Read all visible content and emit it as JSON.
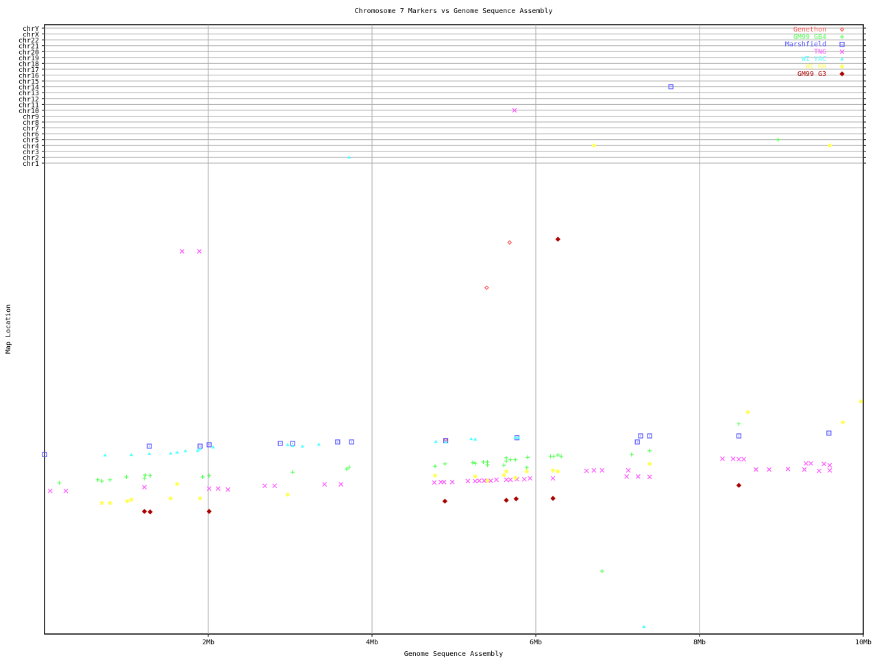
{
  "chart_data": {
    "type": "scatter",
    "title": "Chromosome 7 Markers vs Genome Sequence Assembly",
    "xlabel": "Genome Sequence Assembly",
    "ylabel": "Map Location",
    "xlim": [
      0,
      10
    ],
    "x_ticks": [
      {
        "value": 2,
        "label": "2Mb"
      },
      {
        "value": 4,
        "label": "4Mb"
      },
      {
        "value": 6,
        "label": "6Mb"
      },
      {
        "value": 8,
        "label": "8Mb"
      },
      {
        "value": 10,
        "label": "10Mb"
      }
    ],
    "chromosome_rows": [
      "chr1",
      "chr2",
      "chr3",
      "chr4",
      "chr5",
      "chr6",
      "chr7",
      "chr8",
      "chr9",
      "chr10",
      "chr11",
      "chr12",
      "chr13",
      "chr14",
      "chr15",
      "chr16",
      "chr17",
      "chr18",
      "chr19",
      "chr20",
      "chr21",
      "chr22",
      "chrX",
      "chrY"
    ],
    "ylim": [
      0,
      100
    ],
    "grid": true,
    "legend_position": "top-right",
    "series": [
      {
        "name": "Genethon",
        "color": "#ff5555",
        "marker": "diamond",
        "points": [
          [
            5.68,
            84.0
          ],
          [
            5.4,
            74.3
          ],
          [
            4.9,
            41.6
          ]
        ],
        "other_chr": []
      },
      {
        "name": "GM99 GB4",
        "color": "#55ff55",
        "marker": "plus",
        "points": [
          [
            0.18,
            32.4
          ],
          [
            0.65,
            33.1
          ],
          [
            0.7,
            32.8
          ],
          [
            0.8,
            33.1
          ],
          [
            1.0,
            33.7
          ],
          [
            1.23,
            34.1
          ],
          [
            1.22,
            33.4
          ],
          [
            1.29,
            34.0
          ],
          [
            1.93,
            33.7
          ],
          [
            2.01,
            34.0
          ],
          [
            3.03,
            34.7
          ],
          [
            3.69,
            35.4
          ],
          [
            3.72,
            35.8
          ],
          [
            4.77,
            36.0
          ],
          [
            4.89,
            36.5
          ],
          [
            5.23,
            36.8
          ],
          [
            5.26,
            36.6
          ],
          [
            5.36,
            36.9
          ],
          [
            5.41,
            36.9
          ],
          [
            5.41,
            36.3
          ],
          [
            5.64,
            37.8
          ],
          [
            5.64,
            37.1
          ],
          [
            5.69,
            37.4
          ],
          [
            5.75,
            37.4
          ],
          [
            5.61,
            36.2
          ],
          [
            5.9,
            37.9
          ],
          [
            5.89,
            35.7
          ],
          [
            6.18,
            38.1
          ],
          [
            6.22,
            38.1
          ],
          [
            6.27,
            38.4
          ],
          [
            6.31,
            38.1
          ],
          [
            7.17,
            38.5
          ],
          [
            7.39,
            39.3
          ],
          [
            8.48,
            45.1
          ],
          [
            6.81,
            13.5
          ]
        ],
        "other_chr": [
          {
            "x": 8.96,
            "chr": "chr5"
          }
        ]
      },
      {
        "name": "Marshfield",
        "color": "#5555ff",
        "marker": "square",
        "points": [
          [
            0.0,
            38.5
          ],
          [
            1.28,
            40.3
          ],
          [
            1.9,
            40.3
          ],
          [
            2.01,
            40.6
          ],
          [
            2.88,
            40.9
          ],
          [
            3.03,
            40.9
          ],
          [
            3.58,
            41.2
          ],
          [
            3.75,
            41.2
          ],
          [
            4.9,
            41.5
          ],
          [
            5.77,
            42.1
          ],
          [
            7.28,
            42.5
          ],
          [
            7.39,
            42.5
          ],
          [
            7.24,
            41.2
          ],
          [
            8.48,
            42.5
          ],
          [
            9.58,
            43.1
          ]
        ],
        "other_chr": [
          {
            "x": 7.65,
            "chr": "chr14"
          }
        ]
      },
      {
        "name": "TNG",
        "color": "#ff55ff",
        "marker": "cross",
        "points": [
          [
            0.07,
            30.7
          ],
          [
            0.26,
            30.7
          ],
          [
            1.22,
            31.5
          ],
          [
            2.01,
            31.2
          ],
          [
            2.12,
            31.2
          ],
          [
            2.24,
            31.0
          ],
          [
            2.69,
            31.8
          ],
          [
            2.81,
            31.8
          ],
          [
            3.42,
            32.1
          ],
          [
            3.62,
            32.1
          ],
          [
            4.76,
            32.5
          ],
          [
            4.84,
            32.6
          ],
          [
            4.88,
            32.6
          ],
          [
            4.98,
            32.6
          ],
          [
            5.17,
            32.8
          ],
          [
            5.26,
            32.8
          ],
          [
            5.31,
            32.9
          ],
          [
            5.37,
            32.9
          ],
          [
            5.45,
            32.9
          ],
          [
            5.52,
            33.1
          ],
          [
            5.64,
            33.1
          ],
          [
            5.69,
            33.1
          ],
          [
            5.77,
            33.2
          ],
          [
            5.86,
            33.2
          ],
          [
            5.93,
            33.4
          ],
          [
            6.21,
            33.4
          ],
          [
            6.62,
            35.0
          ],
          [
            6.71,
            35.1
          ],
          [
            6.81,
            35.1
          ],
          [
            7.13,
            35.1
          ],
          [
            7.11,
            33.8
          ],
          [
            7.25,
            33.8
          ],
          [
            7.39,
            33.7
          ],
          [
            8.28,
            37.6
          ],
          [
            8.41,
            37.6
          ],
          [
            8.48,
            37.5
          ],
          [
            8.54,
            37.5
          ],
          [
            8.69,
            35.3
          ],
          [
            8.85,
            35.3
          ],
          [
            9.08,
            35.4
          ],
          [
            9.28,
            35.3
          ],
          [
            9.3,
            36.6
          ],
          [
            9.36,
            36.6
          ],
          [
            9.52,
            36.5
          ],
          [
            9.59,
            36.2
          ],
          [
            9.46,
            35.0
          ],
          [
            9.59,
            35.1
          ],
          [
            1.68,
            82.1
          ],
          [
            1.89,
            82.1
          ]
        ],
        "other_chr": [
          {
            "x": 5.74,
            "chr": "chr10"
          }
        ]
      },
      {
        "name": "WI YAC",
        "color": "#55ffff",
        "marker": "triangle",
        "points": [
          [
            0.74,
            38.4
          ],
          [
            1.06,
            38.5
          ],
          [
            1.28,
            38.7
          ],
          [
            1.54,
            38.8
          ],
          [
            1.62,
            39.0
          ],
          [
            1.72,
            39.3
          ],
          [
            1.87,
            39.4
          ],
          [
            1.9,
            39.7
          ],
          [
            2.06,
            40.1
          ],
          [
            2.97,
            40.6
          ],
          [
            3.03,
            40.4
          ],
          [
            3.15,
            40.3
          ],
          [
            3.35,
            40.7
          ],
          [
            4.78,
            41.3
          ],
          [
            4.9,
            41.2
          ],
          [
            5.21,
            41.9
          ],
          [
            5.26,
            41.8
          ],
          [
            5.75,
            42.2
          ],
          [
            5.79,
            42.1
          ],
          [
            7.32,
            1.6
          ]
        ],
        "other_chr": [
          {
            "x": 3.72,
            "chr": "chr2"
          }
        ]
      },
      {
        "name": "WI RH",
        "color": "#ffff55",
        "marker": "asterisk",
        "points": [
          [
            0.7,
            28.1
          ],
          [
            0.8,
            28.1
          ],
          [
            1.01,
            28.5
          ],
          [
            1.06,
            28.8
          ],
          [
            1.62,
            32.2
          ],
          [
            1.54,
            29.1
          ],
          [
            1.9,
            29.1
          ],
          [
            2.97,
            29.9
          ],
          [
            4.77,
            34.0
          ],
          [
            5.26,
            33.8
          ],
          [
            5.41,
            32.9
          ],
          [
            5.61,
            34.1
          ],
          [
            5.64,
            34.9
          ],
          [
            5.75,
            33.5
          ],
          [
            5.89,
            34.9
          ],
          [
            6.21,
            35.1
          ],
          [
            6.27,
            34.9
          ],
          [
            7.39,
            36.5
          ],
          [
            8.59,
            47.6
          ],
          [
            9.75,
            45.4
          ],
          [
            9.97,
            49.9
          ]
        ],
        "other_chr": [
          {
            "x": 6.71,
            "chr": "chr4"
          },
          {
            "x": 9.59,
            "chr": "chr4"
          }
        ]
      },
      {
        "name": "GM99 G3",
        "color": "#aa0000",
        "marker": "diamond-filled",
        "points": [
          [
            1.22,
            26.3
          ],
          [
            1.29,
            26.2
          ],
          [
            2.01,
            26.3
          ],
          [
            4.89,
            28.5
          ],
          [
            5.64,
            28.7
          ],
          [
            5.76,
            29.0
          ],
          [
            6.21,
            29.1
          ],
          [
            8.48,
            31.9
          ],
          [
            6.27,
            84.7
          ]
        ],
        "other_chr": []
      }
    ]
  }
}
